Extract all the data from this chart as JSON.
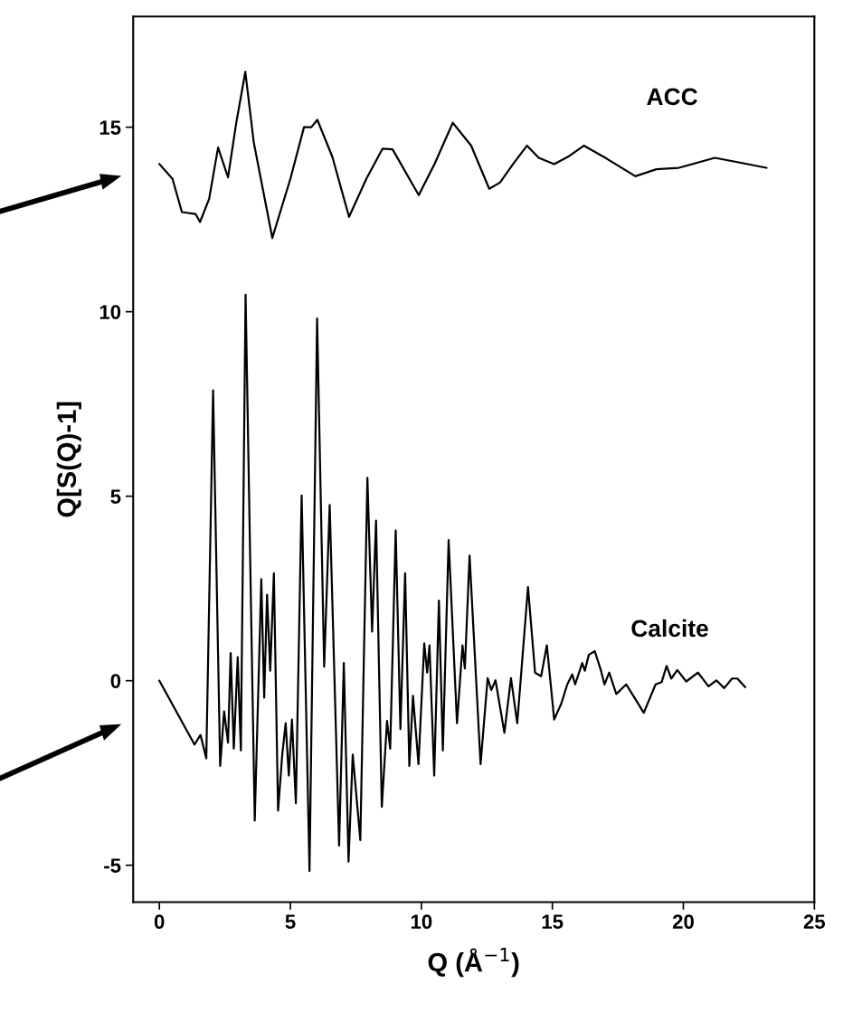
{
  "chart_data": {
    "type": "line",
    "xlabel": "Q (Å$^{−1}$)",
    "ylabel": "Q[S(Q)-1]",
    "xlim": [
      -1,
      25
    ],
    "ylim": [
      -6,
      18
    ],
    "xticks": [
      0,
      5,
      10,
      15,
      20,
      25
    ],
    "yticks": [
      -5,
      0,
      5,
      10,
      15
    ],
    "grid": false,
    "legend": false,
    "marker": "none",
    "line_style": "solid",
    "series": [
      {
        "name": "ACC",
        "color": "#000000",
        "x": [
          0,
          0.5,
          0.86,
          1.38,
          1.55,
          1.9,
          2.24,
          2.62,
          2.93,
          3.28,
          3.6,
          4.31,
          5.0,
          5.52,
          5.8,
          6.03,
          6.6,
          7.24,
          7.9,
          8.52,
          8.9,
          9.9,
          10.5,
          11.2,
          11.9,
          12.59,
          13.0,
          13.5,
          14.03,
          14.48,
          15.07,
          15.6,
          16.2,
          17.07,
          18.17,
          18.97,
          19.83,
          21.2,
          22.24,
          23.17
        ],
        "values": [
          14.0,
          13.6,
          12.7,
          12.65,
          12.43,
          13.06,
          14.45,
          13.64,
          15.1,
          16.5,
          14.6,
          12.0,
          13.6,
          15.0,
          15.0,
          15.2,
          14.2,
          12.57,
          13.6,
          14.42,
          14.4,
          13.16,
          14.0,
          15.12,
          14.5,
          13.33,
          13.5,
          14.0,
          14.5,
          14.17,
          14.0,
          14.2,
          14.5,
          14.15,
          13.67,
          13.86,
          13.9,
          14.17,
          14.03,
          13.9
        ]
      },
      {
        "name": "Calcite",
        "color": "#000000",
        "x": [
          0,
          1.34,
          1.57,
          1.79,
          2.05,
          2.32,
          2.47,
          2.62,
          2.72,
          2.84,
          2.99,
          3.11,
          3.29,
          3.64,
          3.89,
          4.0,
          4.11,
          4.23,
          4.37,
          4.53,
          4.69,
          4.82,
          4.94,
          5.06,
          5.21,
          5.43,
          5.73,
          6.02,
          6.29,
          6.5,
          6.86,
          7.04,
          7.22,
          7.38,
          7.67,
          7.94,
          8.12,
          8.27,
          8.49,
          8.69,
          8.81,
          9.02,
          9.2,
          9.38,
          9.54,
          9.68,
          9.89,
          10.11,
          10.22,
          10.31,
          10.49,
          10.67,
          10.82,
          11.04,
          11.36,
          11.57,
          11.66,
          11.84,
          12.26,
          12.53,
          12.67,
          12.83,
          13.17,
          13.42,
          13.66,
          14.07,
          14.34,
          14.57,
          14.79,
          15.07,
          15.34,
          15.57,
          15.76,
          15.87,
          16.14,
          16.24,
          16.39,
          16.62,
          16.85,
          16.99,
          17.17,
          17.44,
          17.82,
          18.49,
          18.94,
          19.17,
          19.36,
          19.54,
          19.77,
          20.11,
          20.56,
          20.96,
          21.26,
          21.56,
          21.86,
          22.06,
          22.36
        ],
        "values": [
          0,
          -1.73,
          -1.47,
          -2.1,
          7.87,
          -2.31,
          -0.83,
          -1.68,
          0.75,
          -1.84,
          0.64,
          -1.89,
          10.46,
          -3.79,
          2.75,
          -0.46,
          2.33,
          0.27,
          2.91,
          -3.52,
          -2.0,
          -1.15,
          -2.57,
          -1.05,
          -3.32,
          5.02,
          -5.16,
          9.82,
          0.38,
          4.76,
          -4.47,
          0.48,
          -4.9,
          -2.0,
          -4.32,
          5.5,
          1.33,
          4.34,
          -3.42,
          -1.09,
          -1.84,
          4.07,
          -1.31,
          2.91,
          -2.31,
          -0.41,
          -2.26,
          1.01,
          0.22,
          0.96,
          -2.57,
          2.17,
          -1.89,
          3.81,
          -1.15,
          0.96,
          0.33,
          3.39,
          -2.26,
          0.07,
          -0.25,
          0.01,
          -1.41,
          0.07,
          -1.15,
          2.54,
          0.22,
          0.12,
          0.96,
          -1.05,
          -0.62,
          -0.1,
          0.17,
          -0.1,
          0.48,
          0.27,
          0.7,
          0.8,
          0.29,
          -0.1,
          0.22,
          -0.36,
          -0.1,
          -0.87,
          -0.1,
          -0.04,
          0.4,
          0.06,
          0.29,
          -0.02,
          0.22,
          -0.15,
          0.01,
          -0.2,
          0.06,
          0.06,
          -0.17
        ]
      }
    ]
  }
}
